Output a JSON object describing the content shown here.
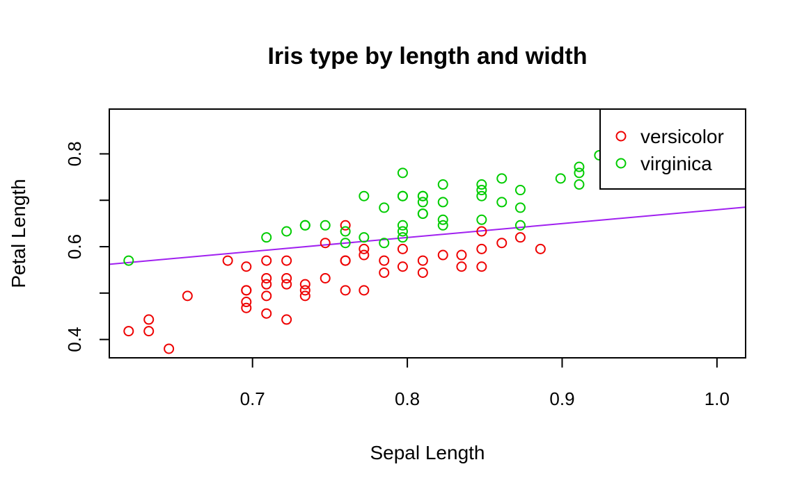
{
  "chart_data": {
    "type": "scatter",
    "title": "Iris type by length and width",
    "xlabel": "Sepal Length",
    "ylabel": "Petal Length",
    "xlim": [
      0.6075,
      1.0185
    ],
    "ylim": [
      0.3605,
      0.8965
    ],
    "x_ticks": [
      0.7,
      0.8,
      0.9,
      1.0
    ],
    "x_tick_labels": [
      "0.7",
      "0.8",
      "0.9",
      "1.0"
    ],
    "y_ticks": [
      0.4,
      0.5,
      0.6,
      0.7,
      0.8
    ],
    "y_tick_labels": [
      "0.4",
      "",
      "0.6",
      "",
      "0.8"
    ],
    "grid": false,
    "legend_position": "top-right",
    "series": [
      {
        "name": "versicolor",
        "color": "#ee0000",
        "marker": "open-circle",
        "points": [
          [
            0.62,
            0.418
          ],
          [
            0.633,
            0.418
          ],
          [
            0.633,
            0.443
          ],
          [
            0.646,
            0.38
          ],
          [
            0.658,
            0.494
          ],
          [
            0.684,
            0.57
          ],
          [
            0.696,
            0.557
          ],
          [
            0.696,
            0.506
          ],
          [
            0.696,
            0.506
          ],
          [
            0.696,
            0.481
          ],
          [
            0.696,
            0.468
          ],
          [
            0.709,
            0.57
          ],
          [
            0.709,
            0.532
          ],
          [
            0.709,
            0.519
          ],
          [
            0.709,
            0.494
          ],
          [
            0.709,
            0.456
          ],
          [
            0.722,
            0.57
          ],
          [
            0.722,
            0.532
          ],
          [
            0.722,
            0.519
          ],
          [
            0.722,
            0.443
          ],
          [
            0.734,
            0.519
          ],
          [
            0.734,
            0.506
          ],
          [
            0.734,
            0.494
          ],
          [
            0.747,
            0.608
          ],
          [
            0.747,
            0.532
          ],
          [
            0.76,
            0.646
          ],
          [
            0.76,
            0.57
          ],
          [
            0.76,
            0.57
          ],
          [
            0.76,
            0.506
          ],
          [
            0.772,
            0.595
          ],
          [
            0.772,
            0.582
          ],
          [
            0.772,
            0.506
          ],
          [
            0.785,
            0.57
          ],
          [
            0.785,
            0.544
          ],
          [
            0.797,
            0.595
          ],
          [
            0.797,
            0.557
          ],
          [
            0.81,
            0.57
          ],
          [
            0.81,
            0.544
          ],
          [
            0.823,
            0.582
          ],
          [
            0.835,
            0.582
          ],
          [
            0.835,
            0.557
          ],
          [
            0.848,
            0.633
          ],
          [
            0.848,
            0.595
          ],
          [
            0.848,
            0.557
          ],
          [
            0.861,
            0.608
          ],
          [
            0.873,
            0.62
          ],
          [
            0.886,
            0.595
          ]
        ]
      },
      {
        "name": "virginica",
        "color": "#00cc00",
        "marker": "open-circle",
        "points": [
          [
            0.62,
            0.57
          ],
          [
            0.709,
            0.62
          ],
          [
            0.722,
            0.633
          ],
          [
            0.734,
            0.646
          ],
          [
            0.734,
            0.646
          ],
          [
            0.747,
            0.646
          ],
          [
            0.76,
            0.633
          ],
          [
            0.76,
            0.608
          ],
          [
            0.772,
            0.709
          ],
          [
            0.772,
            0.62
          ],
          [
            0.785,
            0.684
          ],
          [
            0.785,
            0.608
          ],
          [
            0.797,
            0.759
          ],
          [
            0.797,
            0.709
          ],
          [
            0.797,
            0.709
          ],
          [
            0.797,
            0.646
          ],
          [
            0.797,
            0.633
          ],
          [
            0.797,
            0.62
          ],
          [
            0.81,
            0.709
          ],
          [
            0.81,
            0.709
          ],
          [
            0.81,
            0.696
          ],
          [
            0.81,
            0.671
          ],
          [
            0.81,
            0.671
          ],
          [
            0.823,
            0.734
          ],
          [
            0.823,
            0.696
          ],
          [
            0.823,
            0.658
          ],
          [
            0.823,
            0.646
          ],
          [
            0.848,
            0.734
          ],
          [
            0.848,
            0.722
          ],
          [
            0.848,
            0.709
          ],
          [
            0.848,
            0.658
          ],
          [
            0.861,
            0.747
          ],
          [
            0.861,
            0.696
          ],
          [
            0.873,
            0.722
          ],
          [
            0.873,
            0.684
          ],
          [
            0.873,
            0.646
          ],
          [
            0.899,
            0.747
          ],
          [
            0.911,
            0.772
          ],
          [
            0.911,
            0.759
          ],
          [
            0.911,
            0.734
          ],
          [
            0.924,
            0.797
          ]
        ]
      }
    ],
    "lines": [
      {
        "color": "#a020f0",
        "x": [
          0.6075,
          1.0185
        ],
        "y": [
          0.5621,
          0.6852
        ]
      }
    ]
  }
}
